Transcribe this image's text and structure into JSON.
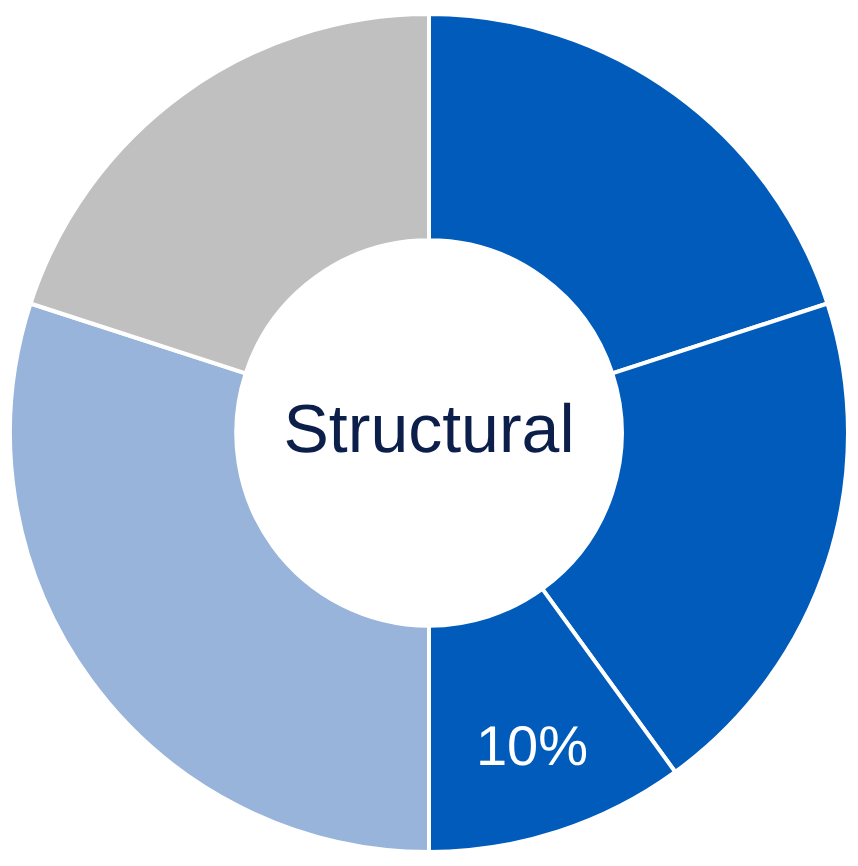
{
  "chart_data": {
    "type": "donut",
    "title": "Structural",
    "categories": [
      null,
      null,
      null,
      null,
      null
    ],
    "values": [
      20,
      20,
      10,
      30,
      20
    ],
    "colors": [
      "#005bbb",
      "#005bbb",
      "#005bbb",
      "#98b4db",
      "#c0c0c0"
    ],
    "value_labels": [
      null,
      null,
      "10%",
      null,
      null
    ],
    "legend": false
  }
}
